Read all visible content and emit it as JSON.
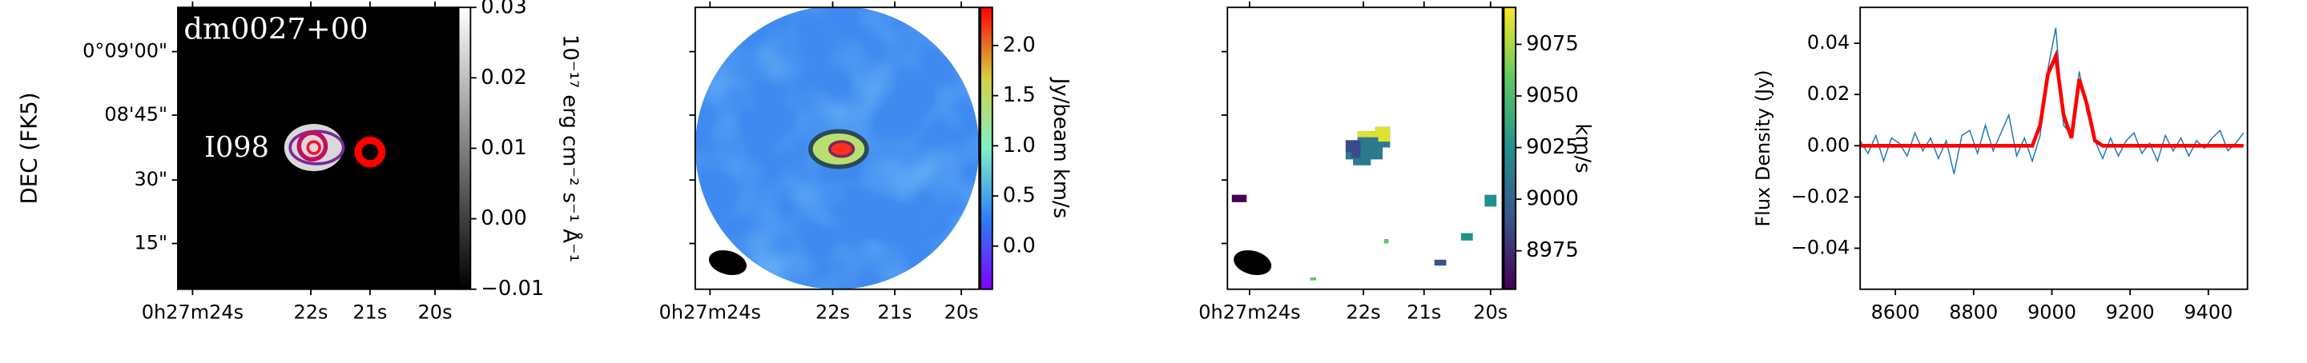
{
  "chart_data": [
    {
      "type": "image",
      "title": "dm0027+00",
      "annotation": "I098",
      "ylabel": "DEC (FK5)",
      "xticks": [
        "0h27m24s",
        "22s",
        "21s",
        "20s"
      ],
      "yticks": [
        "0°09'00\"",
        "08'45\"",
        "30\"",
        "15\""
      ],
      "colorbar": {
        "label": "10⁻¹⁷ erg cm⁻² s⁻¹ Å⁻¹",
        "lim": [
          -0.01,
          0.03
        ],
        "ticks": [
          {
            "value": -0.01,
            "label": "−0.01"
          },
          {
            "value": 0,
            "label": "0.00"
          },
          0.01,
          0.02,
          0.03
        ]
      }
    },
    {
      "type": "image",
      "xticks": [
        "0h27m24s",
        "22s",
        "21s",
        "20s"
      ],
      "colorbar": {
        "label": "Jy/beam km/s",
        "lim": [
          -0.43,
          2.38
        ],
        "ticks": [
          {
            "value": 0,
            "label": "0.0"
          },
          0.5,
          {
            "value": 1,
            "label": "1.0"
          },
          1.5,
          {
            "value": 2,
            "label": "2.0"
          }
        ]
      }
    },
    {
      "type": "image",
      "xticks": [
        "0h27m24s",
        "22s",
        "21s",
        "20s"
      ],
      "colorbar": {
        "label": "km/s",
        "lim": [
          8956.4,
          9092.9
        ],
        "ticks": [
          8975,
          9000,
          9025,
          9050,
          9075
        ]
      }
    },
    {
      "type": "line",
      "ylabel": "Flux Density (Jy)",
      "xlim": [
        8510,
        9500
      ],
      "ylim": [
        -0.056,
        0.054
      ],
      "xticks": [
        8600,
        8800,
        9000,
        9200,
        9400
      ],
      "yticks": [
        {
          "value": -0.04,
          "label": "−0.04"
        },
        {
          "value": -0.02,
          "label": "−0.02"
        },
        {
          "value": 0,
          "label": "0.00"
        },
        0.02,
        0.04
      ],
      "x": [
        8510,
        8530,
        8550,
        8570,
        8590,
        8610,
        8630,
        8650,
        8670,
        8690,
        8710,
        8730,
        8750,
        8770,
        8790,
        8810,
        8830,
        8850,
        8870,
        8890,
        8910,
        8930,
        8950,
        8970,
        8990,
        9010,
        9030,
        9050,
        9070,
        9090,
        9110,
        9130,
        9150,
        9170,
        9190,
        9210,
        9230,
        9250,
        9270,
        9290,
        9310,
        9330,
        9350,
        9370,
        9390,
        9410,
        9430,
        9450,
        9470,
        9490
      ],
      "series": [
        {
          "color": "#1f77b4",
          "values": [
            0.002,
            -0.003,
            0.004,
            -0.006,
            0.003,
            0.001,
            -0.004,
            0.005,
            -0.002,
            0.003,
            -0.005,
            0.002,
            -0.011,
            0.004,
            0.006,
            -0.003,
            0.008,
            -0.002,
            0.005,
            0.012,
            -0.004,
            0.003,
            -0.006,
            0.004,
            0.03,
            0.046,
            0.008,
            0.004,
            0.029,
            0.013,
            0.002,
            -0.005,
            0.003,
            -0.004,
            0.002,
            0.005,
            -0.003,
            0.001,
            -0.006,
            0.004,
            -0.002,
            0.003,
            -0.004,
            0.002,
            -0.001,
            0.003,
            0.006,
            -0.002,
            0.001,
            0.005
          ]
        },
        {
          "color": "#ff0000",
          "values": [
            0,
            0,
            0,
            0,
            0,
            0,
            0,
            0,
            0,
            0,
            0,
            0,
            0,
            0,
            0,
            0,
            0,
            0,
            0,
            0,
            0,
            0,
            0,
            0.008,
            0.028,
            0.035,
            0.012,
            0.003,
            0.026,
            0.016,
            0.002,
            0,
            0,
            0,
            0,
            0,
            0,
            0,
            0,
            0,
            0,
            0,
            0,
            0,
            0,
            0,
            0,
            0,
            0,
            0
          ]
        }
      ]
    }
  ]
}
